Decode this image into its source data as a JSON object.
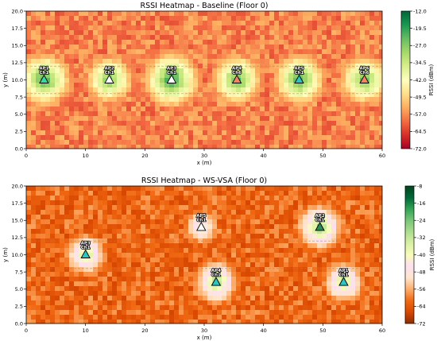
{
  "chart_data": [
    {
      "type": "heatmap",
      "title": "RSSI Heatmap - Baseline (Floor 0)",
      "xlabel": "x (m)",
      "ylabel": "y (m)",
      "xlim": [
        0,
        60
      ],
      "ylim": [
        0,
        20
      ],
      "xticks": [
        "0",
        "10",
        "20",
        "30",
        "40",
        "50",
        "60"
      ],
      "yticks": [
        "0.0",
        "2.5",
        "5.0",
        "7.5",
        "10.0",
        "12.5",
        "15.0",
        "17.5",
        "20.0"
      ],
      "colorbar": {
        "label": "RSSI (dBm)",
        "min": -72,
        "max": -12,
        "ticks": [
          "-12.0",
          "-19.5",
          "-27.0",
          "-34.5",
          "-42.0",
          "-49.5",
          "-57.0",
          "-64.5",
          "-72.0"
        ],
        "colors": [
          "#a50026",
          "#d73027",
          "#f46d43",
          "#fdae61",
          "#fee08b",
          "#ffffbf",
          "#d9ef8b",
          "#a6d96a",
          "#66bd63",
          "#1a9850",
          "#006837"
        ]
      },
      "corridor_y": [
        8,
        12
      ],
      "background_rssi": -58,
      "access_points": [
        {
          "name": "AP1",
          "channel": "Ch1",
          "x": 3,
          "y": 10,
          "marker_color": "#3dd6a0",
          "peak_rssi": -18
        },
        {
          "name": "AP2",
          "channel": "Ch1",
          "x": 14,
          "y": 10,
          "marker_color": "#ffffff",
          "peak_rssi": -22
        },
        {
          "name": "AP3",
          "channel": "Ch1",
          "x": 24.5,
          "y": 10,
          "marker_color": "#ffffff",
          "peak_rssi": -16
        },
        {
          "name": "AP4",
          "channel": "Ch6",
          "x": 35.5,
          "y": 10,
          "marker_color": "#f4845f",
          "peak_rssi": -20
        },
        {
          "name": "AP5",
          "channel": "Ch1",
          "x": 46,
          "y": 10,
          "marker_color": "#2ec4c4",
          "peak_rssi": -19
        },
        {
          "name": "AP6",
          "channel": "Ch6",
          "x": 57,
          "y": 10,
          "marker_color": "#f4845f",
          "peak_rssi": -21
        }
      ]
    },
    {
      "type": "heatmap",
      "title": "RSSI Heatmap - WS-VSA (Floor 0)",
      "xlabel": "x (m)",
      "ylabel": "y (m)",
      "xlim": [
        0,
        60
      ],
      "ylim": [
        0,
        20
      ],
      "xticks": [
        "0",
        "10",
        "20",
        "30",
        "40",
        "50",
        "60"
      ],
      "yticks": [
        "0.0",
        "2.5",
        "5.0",
        "7.5",
        "10.0",
        "12.5",
        "15.0",
        "17.5",
        "20.0"
      ],
      "colorbar": {
        "label": "RSSI (dBm)",
        "min": -72,
        "max": -8,
        "ticks": [
          "-8",
          "-16",
          "-24",
          "-32",
          "-40",
          "-48",
          "-56",
          "-64",
          "-72"
        ],
        "colors": [
          "#8c2d04",
          "#d94801",
          "#f16913",
          "#fdae6b",
          "#fee6ce",
          "#fde0ef",
          "#f7fcb9",
          "#d9f0a3",
          "#addd8e",
          "#78c679",
          "#31a354",
          "#006837",
          "#00441b"
        ]
      },
      "corridor_y": [
        8,
        12
      ],
      "background_rssi": -62,
      "access_points": [
        {
          "name": "AP3",
          "channel": "Ch1",
          "x": 10,
          "y": 10,
          "marker_color": "#2ec4c4",
          "peak_rssi": -30
        },
        {
          "name": "AP5",
          "channel": "Ch1",
          "x": 29.5,
          "y": 14,
          "marker_color": "#ffffff",
          "peak_rssi": -36
        },
        {
          "name": "AP4",
          "channel": "Ch1",
          "x": 32,
          "y": 6,
          "marker_color": "#2ec4c4",
          "peak_rssi": -28
        },
        {
          "name": "AP2",
          "channel": "Ch1",
          "x": 49.5,
          "y": 14,
          "marker_color": "#2e8b57",
          "peak_rssi": -26
        },
        {
          "name": "AP1",
          "channel": "Ch1",
          "x": 53.5,
          "y": 6,
          "marker_color": "#2ec4c4",
          "peak_rssi": -30
        }
      ]
    }
  ]
}
